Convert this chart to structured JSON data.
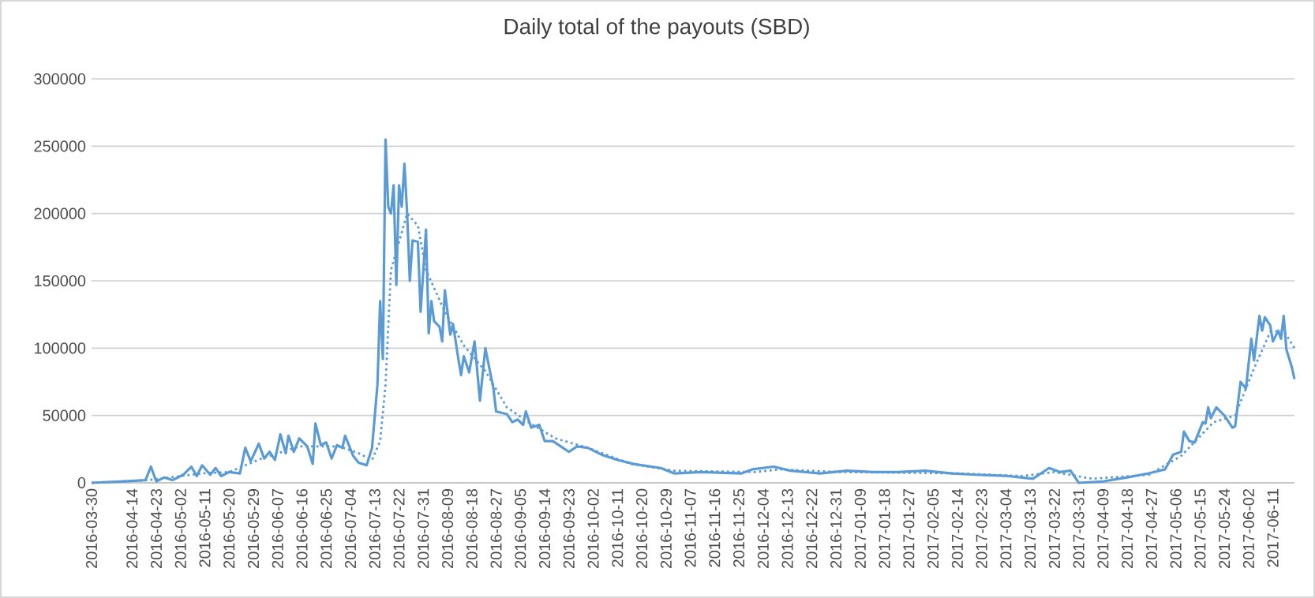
{
  "chart_data": {
    "type": "line",
    "title": "Daily total of the payouts (SBD)",
    "xlim": [
      "2016-03-30",
      "2017-06-19"
    ],
    "xticks": [
      "2016-03-30",
      "2016-04-14",
      "2016-04-23",
      "2016-05-02",
      "2016-05-11",
      "2016-05-20",
      "2016-05-29",
      "2016-06-07",
      "2016-06-16",
      "2016-06-25",
      "2016-07-04",
      "2016-07-13",
      "2016-07-22",
      "2016-07-31",
      "2016-08-09",
      "2016-08-18",
      "2016-08-27",
      "2016-09-05",
      "2016-09-14",
      "2016-09-23",
      "2016-10-02",
      "2016-10-11",
      "2016-10-20",
      "2016-10-29",
      "2016-11-07",
      "2016-11-16",
      "2016-11-25",
      "2016-12-04",
      "2016-12-13",
      "2016-12-22",
      "2016-12-31",
      "2017-01-09",
      "2017-01-18",
      "2017-01-27",
      "2017-02-05",
      "2017-02-14",
      "2017-02-23",
      "2017-03-04",
      "2017-03-13",
      "2017-03-22",
      "2017-03-31",
      "2017-04-09",
      "2017-04-18",
      "2017-04-27",
      "2017-05-06",
      "2017-05-15",
      "2017-05-24",
      "2017-06-02",
      "2017-06-11"
    ],
    "ylim": [
      0,
      300000
    ],
    "yticks": [
      0,
      50000,
      100000,
      150000,
      200000,
      250000,
      300000
    ],
    "grid": "y",
    "marker": "none",
    "series": [
      {
        "color": "#5b9bd5",
        "line_style": "solid",
        "x": [
          "2016-03-30",
          "2016-04-10",
          "2016-04-19",
          "2016-04-21",
          "2016-04-23",
          "2016-04-26",
          "2016-04-29",
          "2016-05-03",
          "2016-05-06",
          "2016-05-08",
          "2016-05-10",
          "2016-05-13",
          "2016-05-15",
          "2016-05-17",
          "2016-05-20",
          "2016-05-24",
          "2016-05-26",
          "2016-05-28",
          "2016-05-31",
          "2016-06-02",
          "2016-06-04",
          "2016-06-06",
          "2016-06-08",
          "2016-06-10",
          "2016-06-11",
          "2016-06-13",
          "2016-06-15",
          "2016-06-18",
          "2016-06-20",
          "2016-06-21",
          "2016-06-23",
          "2016-06-25",
          "2016-06-27",
          "2016-06-29",
          "2016-07-01",
          "2016-07-02",
          "2016-07-05",
          "2016-07-07",
          "2016-07-10",
          "2016-07-12",
          "2016-07-14",
          "2016-07-15",
          "2016-07-16",
          "2016-07-17",
          "2016-07-18",
          "2016-07-19",
          "2016-07-20",
          "2016-07-21",
          "2016-07-22",
          "2016-07-23",
          "2016-07-24",
          "2016-07-25",
          "2016-07-26",
          "2016-07-27",
          "2016-07-29",
          "2016-07-30",
          "2016-08-01",
          "2016-08-02",
          "2016-08-03",
          "2016-08-04",
          "2016-08-06",
          "2016-08-07",
          "2016-08-08",
          "2016-08-10",
          "2016-08-11",
          "2016-08-13",
          "2016-08-14",
          "2016-08-15",
          "2016-08-17",
          "2016-08-19",
          "2016-08-21",
          "2016-08-23",
          "2016-08-25",
          "2016-08-26",
          "2016-08-27",
          "2016-08-31",
          "2016-09-02",
          "2016-09-04",
          "2016-09-06",
          "2016-09-07",
          "2016-09-09",
          "2016-09-12",
          "2016-09-14",
          "2016-09-17",
          "2016-09-20",
          "2016-09-23",
          "2016-09-26",
          "2016-09-30",
          "2016-10-05",
          "2016-10-11",
          "2016-10-17",
          "2016-10-27",
          "2016-11-01",
          "2016-11-11",
          "2016-11-26",
          "2016-11-30",
          "2016-12-08",
          "2016-12-14",
          "2016-12-25",
          "2017-01-04",
          "2017-01-14",
          "2017-01-23",
          "2017-02-02",
          "2017-02-12",
          "2017-02-21",
          "2017-03-05",
          "2017-03-14",
          "2017-03-20",
          "2017-03-24",
          "2017-03-28",
          "2017-03-31",
          "2017-04-09",
          "2017-04-18",
          "2017-04-26",
          "2017-05-02",
          "2017-05-05",
          "2017-05-08",
          "2017-05-09",
          "2017-05-11",
          "2017-05-13",
          "2017-05-16",
          "2017-05-17",
          "2017-05-18",
          "2017-05-19",
          "2017-05-21",
          "2017-05-24",
          "2017-05-27",
          "2017-05-28",
          "2017-05-30",
          "2017-06-01",
          "2017-06-03",
          "2017-06-04",
          "2017-06-06",
          "2017-06-07",
          "2017-06-08",
          "2017-06-10",
          "2017-06-11",
          "2017-06-13",
          "2017-06-14",
          "2017-06-15",
          "2017-06-16",
          "2017-06-18",
          "2017-06-19"
        ],
        "values": [
          0,
          1000,
          2000,
          12000,
          1000,
          4000,
          2000,
          6000,
          12000,
          5000,
          13000,
          6000,
          11000,
          5000,
          8000,
          7000,
          26000,
          16000,
          29000,
          18000,
          23000,
          17000,
          36000,
          22000,
          35000,
          23000,
          33000,
          27000,
          14000,
          44000,
          28000,
          30000,
          18000,
          28000,
          26000,
          35000,
          20000,
          15000,
          13000,
          26000,
          73000,
          135000,
          92000,
          255000,
          205000,
          200000,
          221000,
          147000,
          221000,
          205000,
          237000,
          200000,
          150000,
          180000,
          179000,
          127000,
          188000,
          111000,
          135000,
          120000,
          116000,
          105000,
          143000,
          110000,
          118000,
          92000,
          80000,
          94000,
          82000,
          105000,
          61000,
          100000,
          80000,
          70000,
          53000,
          51000,
          45000,
          47000,
          43000,
          53000,
          41000,
          43000,
          31000,
          31000,
          27000,
          23000,
          27000,
          26000,
          21000,
          17000,
          14000,
          11000,
          7000,
          8000,
          7000,
          10000,
          12000,
          9000,
          7000,
          9000,
          8000,
          8000,
          9000,
          7000,
          6000,
          5000,
          3000,
          11000,
          8000,
          9000,
          0,
          1000,
          4000,
          7000,
          10000,
          21000,
          23000,
          38000,
          31000,
          30000,
          45000,
          44000,
          56000,
          48000,
          56000,
          50000,
          41000,
          42000,
          75000,
          70000,
          107000,
          91000,
          124000,
          113000,
          123000,
          117000,
          105000,
          113000,
          107000,
          124000,
          99000,
          86000,
          77000
        ]
      },
      {
        "color": "#5b9bd5",
        "line_style": "dotted",
        "x": [
          "2016-03-30",
          "2016-04-20",
          "2016-05-10",
          "2016-05-20",
          "2016-06-01",
          "2016-06-15",
          "2016-06-30",
          "2016-07-07",
          "2016-07-12",
          "2016-07-15",
          "2016-07-17",
          "2016-07-19",
          "2016-07-25",
          "2016-07-29",
          "2016-08-01",
          "2016-08-08",
          "2016-08-15",
          "2016-08-23",
          "2016-08-31",
          "2016-09-08",
          "2016-09-18",
          "2016-09-30",
          "2016-10-16",
          "2016-11-01",
          "2016-12-01",
          "2016-12-10",
          "2017-01-01",
          "2017-02-15",
          "2017-03-10",
          "2017-03-22",
          "2017-04-05",
          "2017-04-26",
          "2017-05-08",
          "2017-05-20",
          "2017-05-28",
          "2017-06-04",
          "2017-06-10",
          "2017-06-15",
          "2017-06-19"
        ],
        "values": [
          0,
          2000,
          7000,
          8000,
          18000,
          27000,
          27000,
          22000,
          17000,
          31000,
          73000,
          158000,
          200000,
          191000,
          158000,
          127000,
          102000,
          83000,
          56000,
          45000,
          33000,
          26000,
          14000,
          9000,
          8000,
          10000,
          8000,
          7000,
          5000,
          8000,
          3000,
          6000,
          20000,
          45000,
          50000,
          85000,
          112000,
          113000,
          100000
        ]
      }
    ]
  }
}
